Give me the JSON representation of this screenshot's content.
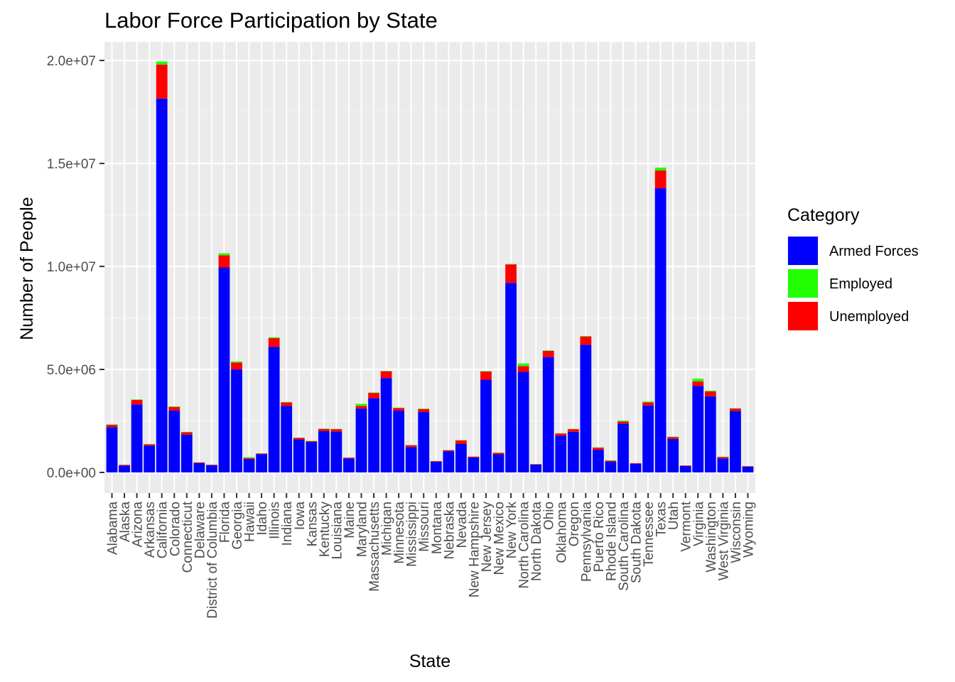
{
  "chart_data": {
    "type": "bar",
    "stacked": true,
    "title": "Labor Force Participation by State",
    "xlabel": "State",
    "ylabel": "Number of People",
    "ylim": [
      -1000000,
      20900000
    ],
    "yticks": [
      0,
      5000000,
      10000000,
      15000000,
      20000000
    ],
    "ytick_labels": [
      "0.0e+00",
      "5.0e+06",
      "1.0e+07",
      "1.5e+07",
      "2.0e+07"
    ],
    "grid": true,
    "legend_position": "right",
    "legend_title": "Category",
    "categories": [
      "Alabama",
      "Alaska",
      "Arizona",
      "Arkansas",
      "California",
      "Colorado",
      "Connecticut",
      "Delaware",
      "District of Columbia",
      "Florida",
      "Georgia",
      "Hawaii",
      "Idaho",
      "Illinois",
      "Indiana",
      "Iowa",
      "Kansas",
      "Kentucky",
      "Louisiana",
      "Maine",
      "Maryland",
      "Massachusetts",
      "Michigan",
      "Minnesota",
      "Mississippi",
      "Missouri",
      "Montana",
      "Nebraska",
      "Nevada",
      "New Hampshire",
      "New Jersey",
      "New Mexico",
      "New York",
      "North Carolina",
      "North Dakota",
      "Ohio",
      "Oklahoma",
      "Oregon",
      "Pennsylvania",
      "Puerto Rico",
      "Rhode Island",
      "South Carolina",
      "South Dakota",
      "Tennessee",
      "Texas",
      "Utah",
      "Vermont",
      "Virginia",
      "Washington",
      "West Virginia",
      "Wisconsin",
      "Wyoming"
    ],
    "series": [
      {
        "name": "Armed Forces",
        "color": "#0000ff",
        "values": [
          2200000,
          330000,
          3300000,
          1300000,
          18150000,
          3000000,
          1830000,
          450000,
          350000,
          9950000,
          5000000,
          650000,
          890000,
          6100000,
          3230000,
          1600000,
          1480000,
          2000000,
          1980000,
          680000,
          3100000,
          3600000,
          4580000,
          3000000,
          1230000,
          2930000,
          520000,
          1030000,
          1380000,
          730000,
          4500000,
          880000,
          9200000,
          4880000,
          380000,
          5600000,
          1780000,
          1970000,
          6200000,
          1100000,
          530000,
          2370000,
          420000,
          3250000,
          13800000,
          1620000,
          310000,
          4200000,
          3700000,
          680000,
          2980000,
          280000
        ]
      },
      {
        "name": "Employed",
        "color": "#22ff00",
        "values": [
          20000,
          5000,
          25000,
          10000,
          150000,
          30000,
          20000,
          5000,
          5000,
          100000,
          60000,
          40000,
          10000,
          40000,
          20000,
          10000,
          15000,
          20000,
          15000,
          5000,
          100000,
          20000,
          20000,
          15000,
          15000,
          20000,
          5000,
          10000,
          20000,
          5000,
          20000,
          10000,
          20000,
          130000,
          5000,
          25000,
          15000,
          15000,
          20000,
          20000,
          10000,
          50000,
          5000,
          40000,
          140000,
          20000,
          5000,
          130000,
          40000,
          15000,
          20000,
          5000
        ]
      },
      {
        "name": "Unemployed",
        "color": "#ff0000",
        "values": [
          110000,
          35000,
          220000,
          65000,
          1650000,
          180000,
          120000,
          35000,
          25000,
          590000,
          330000,
          50000,
          30000,
          420000,
          170000,
          80000,
          40000,
          110000,
          120000,
          40000,
          130000,
          260000,
          330000,
          130000,
          90000,
          150000,
          30000,
          50000,
          170000,
          40000,
          400000,
          70000,
          900000,
          280000,
          20000,
          300000,
          110000,
          130000,
          400000,
          100000,
          45000,
          100000,
          30000,
          150000,
          860000,
          100000,
          25000,
          220000,
          230000,
          70000,
          120000,
          25000
        ]
      }
    ]
  }
}
